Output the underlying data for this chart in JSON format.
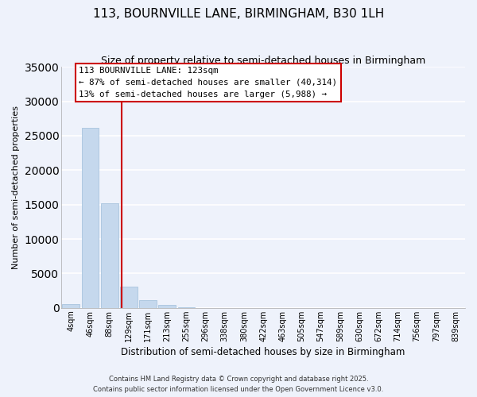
{
  "title": "113, BOURNVILLE LANE, BIRMINGHAM, B30 1LH",
  "subtitle": "Size of property relative to semi-detached houses in Birmingham",
  "xlabel": "Distribution of semi-detached houses by size in Birmingham",
  "ylabel": "Number of semi-detached properties",
  "bin_labels": [
    "4sqm",
    "46sqm",
    "88sqm",
    "129sqm",
    "171sqm",
    "213sqm",
    "255sqm",
    "296sqm",
    "338sqm",
    "380sqm",
    "422sqm",
    "463sqm",
    "505sqm",
    "547sqm",
    "589sqm",
    "630sqm",
    "672sqm",
    "714sqm",
    "756sqm",
    "797sqm",
    "839sqm"
  ],
  "bar_values": [
    500,
    26100,
    15200,
    3100,
    1100,
    450,
    80,
    0,
    0,
    0,
    0,
    0,
    0,
    0,
    0,
    0,
    0,
    0,
    0,
    0,
    0
  ],
  "bar_color": "#c5d8ed",
  "bar_edgecolor": "#a8c4de",
  "vline_x": 2.62,
  "vline_color": "#cc0000",
  "annotation_title": "113 BOURNVILLE LANE: 123sqm",
  "annotation_line1": "← 87% of semi-detached houses are smaller (40,314)",
  "annotation_line2": "13% of semi-detached houses are larger (5,988) →",
  "annotation_box_facecolor": "#ffffff",
  "annotation_box_edgecolor": "#cc0000",
  "ylim": [
    0,
    35000
  ],
  "yticks": [
    0,
    5000,
    10000,
    15000,
    20000,
    25000,
    30000,
    35000
  ],
  "footer_line1": "Contains HM Land Registry data © Crown copyright and database right 2025.",
  "footer_line2": "Contains public sector information licensed under the Open Government Licence v3.0.",
  "background_color": "#eef2fb",
  "grid_color": "#ffffff",
  "title_fontsize": 11,
  "subtitle_fontsize": 9
}
